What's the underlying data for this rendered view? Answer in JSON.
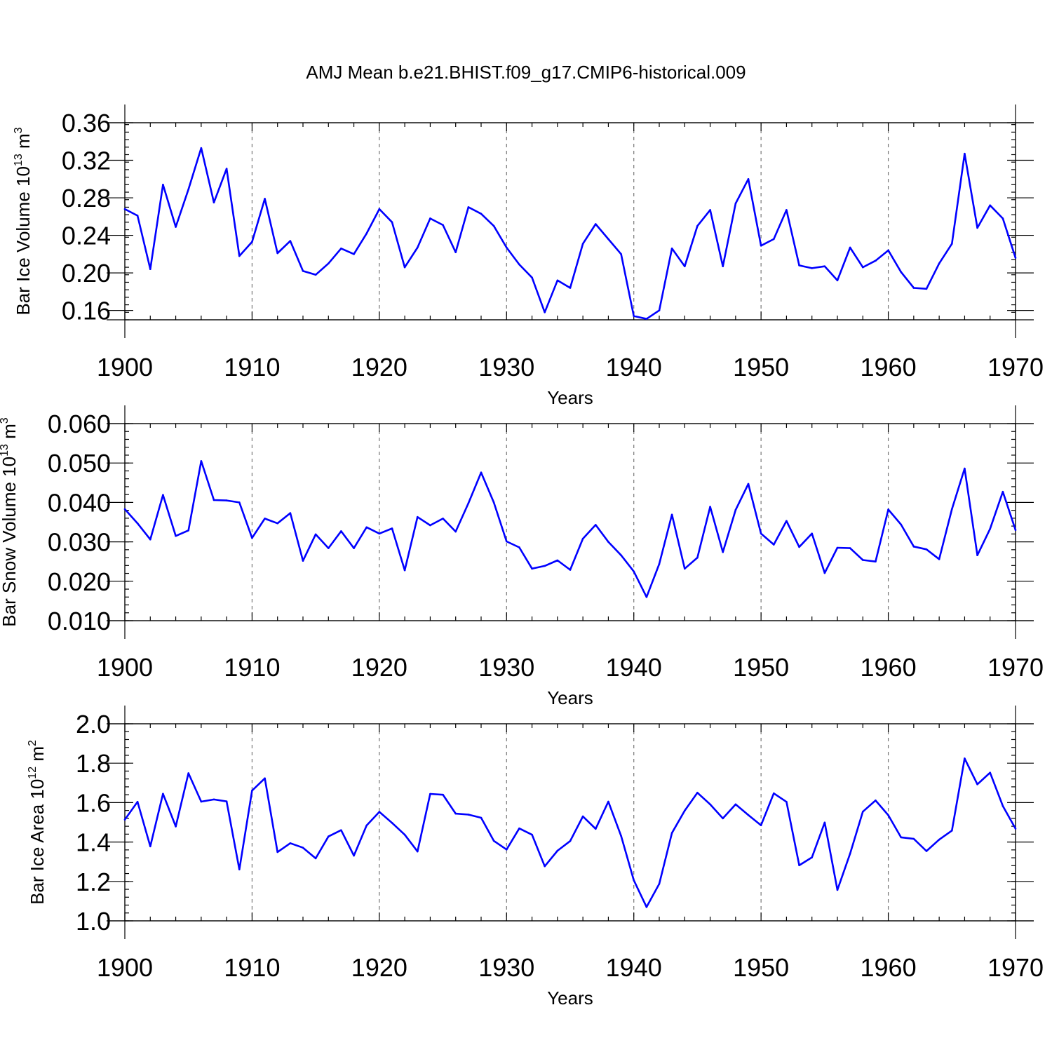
{
  "title": "AMJ Mean b.e21.BHIST.f09_g17.CMIP6-historical.009",
  "colors": {
    "line": "#0000ff",
    "grid": "#777777",
    "axis": "#000000"
  },
  "chart_data": [
    {
      "type": "line",
      "id": "ice-volume",
      "ylabel": {
        "base": "Bar Ice Volume 10",
        "exp1": "13",
        "mid": " m",
        "exp2": "3"
      },
      "xlabel": "Years",
      "xlim": [
        1900,
        1970
      ],
      "ylim": [
        0.15,
        0.36
      ],
      "xticks": [
        "1900",
        "1910",
        "1920",
        "1930",
        "1940",
        "1950",
        "1960",
        "1970"
      ],
      "yticks": [
        0.16,
        0.2,
        0.24,
        0.28,
        0.32,
        0.36
      ],
      "ytick_labels": [
        "0.16",
        "0.20",
        "0.24",
        "0.28",
        "0.32",
        "0.36"
      ],
      "y_minor_step": 0.008,
      "vgrid": [
        1910,
        1920,
        1930,
        1940,
        1950,
        1960
      ],
      "x_start": 1900,
      "values": [
        0.268,
        0.261,
        0.204,
        0.294,
        0.249,
        0.289,
        0.333,
        0.275,
        0.311,
        0.218,
        0.233,
        0.279,
        0.221,
        0.234,
        0.202,
        0.198,
        0.21,
        0.226,
        0.22,
        0.242,
        0.268,
        0.254,
        0.206,
        0.227,
        0.258,
        0.251,
        0.222,
        0.27,
        0.263,
        0.25,
        0.227,
        0.209,
        0.195,
        0.158,
        0.192,
        0.184,
        0.231,
        0.252,
        0.236,
        0.22,
        0.154,
        0.151,
        0.16,
        0.226,
        0.207,
        0.25,
        0.267,
        0.207,
        0.274,
        0.3,
        0.229,
        0.236,
        0.267,
        0.208,
        0.205,
        0.207,
        0.192,
        0.227,
        0.206,
        0.213,
        0.224,
        0.201,
        0.184,
        0.183,
        0.21,
        0.231,
        0.327,
        0.248,
        0.272,
        0.258,
        0.216
      ]
    },
    {
      "type": "line",
      "id": "snow-volume",
      "ylabel": {
        "base": "Bar Snow Volume 10",
        "exp1": "13",
        "mid": " m",
        "exp2": "3"
      },
      "xlabel": "Years",
      "xlim": [
        1900,
        1970
      ],
      "ylim": [
        0.01,
        0.06
      ],
      "xticks": [
        "1900",
        "1910",
        "1920",
        "1930",
        "1940",
        "1950",
        "1960",
        "1970"
      ],
      "yticks": [
        0.01,
        0.02,
        0.03,
        0.04,
        0.05,
        0.06
      ],
      "ytick_labels": [
        "0.010",
        "0.020",
        "0.030",
        "0.040",
        "0.050",
        "0.060"
      ],
      "y_minor_step": 0.002,
      "vgrid": [
        1910,
        1920,
        1930,
        1940,
        1950,
        1960
      ],
      "x_start": 1900,
      "values": [
        0.0383,
        0.0347,
        0.0306,
        0.0419,
        0.0315,
        0.0329,
        0.0505,
        0.0406,
        0.0405,
        0.04,
        0.031,
        0.0359,
        0.0347,
        0.0373,
        0.0252,
        0.0319,
        0.0284,
        0.0327,
        0.0284,
        0.0337,
        0.0321,
        0.0334,
        0.0228,
        0.0363,
        0.0342,
        0.0359,
        0.0326,
        0.0398,
        0.0476,
        0.04,
        0.0301,
        0.0286,
        0.0232,
        0.0239,
        0.0253,
        0.0229,
        0.0308,
        0.0343,
        0.03,
        0.0266,
        0.0225,
        0.016,
        0.0244,
        0.0369,
        0.0232,
        0.026,
        0.0389,
        0.0274,
        0.0381,
        0.0447,
        0.0321,
        0.0293,
        0.0353,
        0.0287,
        0.0321,
        0.0221,
        0.0285,
        0.0284,
        0.0254,
        0.025,
        0.0382,
        0.0344,
        0.0288,
        0.0281,
        0.0256,
        0.0383,
        0.0486,
        0.0266,
        0.0333,
        0.0427,
        0.033
      ]
    },
    {
      "type": "line",
      "id": "ice-area",
      "ylabel": {
        "base": "Bar Ice Area 10",
        "exp1": "12",
        "mid": " m",
        "exp2": "2"
      },
      "xlabel": "Years",
      "xlim": [
        1900,
        1970
      ],
      "ylim": [
        1.0,
        2.0
      ],
      "xticks": [
        "1900",
        "1910",
        "1920",
        "1930",
        "1940",
        "1950",
        "1960",
        "1970"
      ],
      "yticks": [
        1.0,
        1.2,
        1.4,
        1.6,
        1.8,
        2.0
      ],
      "ytick_labels": [
        "1.0",
        "1.2",
        "1.4",
        "1.6",
        "1.8",
        "2.0"
      ],
      "y_minor_step": 0.04,
      "vgrid": [
        1910,
        1920,
        1930,
        1940,
        1950,
        1960
      ],
      "x_start": 1900,
      "values": [
        1.514,
        1.604,
        1.378,
        1.645,
        1.479,
        1.749,
        1.605,
        1.616,
        1.606,
        1.261,
        1.661,
        1.723,
        1.349,
        1.394,
        1.371,
        1.317,
        1.428,
        1.46,
        1.331,
        1.484,
        1.553,
        1.497,
        1.437,
        1.352,
        1.644,
        1.64,
        1.544,
        1.539,
        1.523,
        1.406,
        1.362,
        1.469,
        1.437,
        1.277,
        1.356,
        1.405,
        1.53,
        1.467,
        1.605,
        1.431,
        1.206,
        1.07,
        1.188,
        1.446,
        1.559,
        1.65,
        1.591,
        1.52,
        1.591,
        1.537,
        1.485,
        1.647,
        1.604,
        1.282,
        1.322,
        1.499,
        1.157,
        1.341,
        1.554,
        1.611,
        1.536,
        1.424,
        1.416,
        1.354,
        1.412,
        1.458,
        1.824,
        1.693,
        1.752,
        1.583,
        1.468
      ]
    }
  ]
}
